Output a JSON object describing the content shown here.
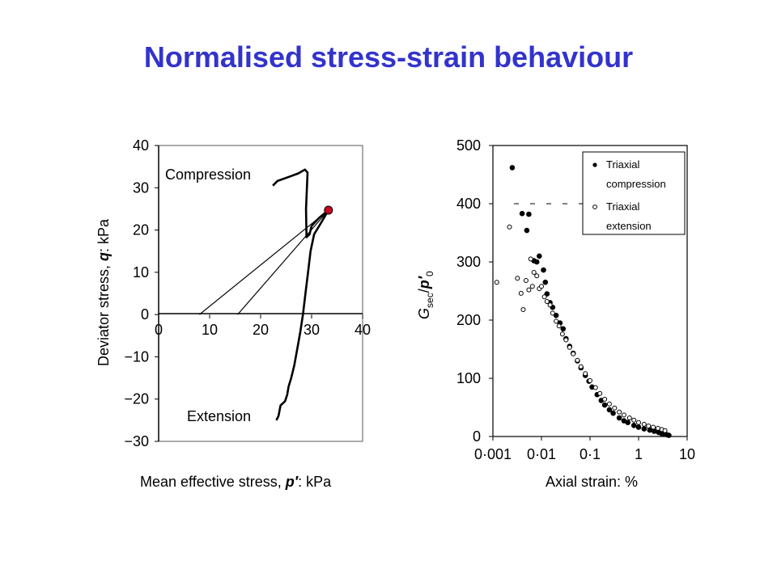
{
  "slide": {
    "title": "Normalised stress-strain behaviour"
  },
  "colors": {
    "title": "#3333cc",
    "stress_point": "#cc0022"
  },
  "chart_data": [
    {
      "type": "line",
      "xlabel_parts": [
        "Mean effective stress, ",
        "p′",
        ": kPa"
      ],
      "ylabel_parts": [
        "Deviator stress, ",
        "q",
        ": kPa"
      ],
      "xlim": [
        0,
        40
      ],
      "ylim": [
        -30,
        40
      ],
      "x_ticks": [
        "0",
        "10",
        "20",
        "30",
        "40"
      ],
      "y_ticks": [
        "40",
        "30",
        "20",
        "10",
        "0",
        "−10",
        "−20",
        "−30"
      ],
      "annotations": [
        "Compression",
        "Extension"
      ],
      "grid": false,
      "initial_state": {
        "x": 33.3,
        "y": 24.7
      },
      "series": [
        {
          "x": [
            22.4,
            23.3,
            25.6,
            27.4,
            28.7,
            29.2,
            28.9,
            29.0,
            29.6,
            30.0
          ],
          "y": [
            30.5,
            31.6,
            32.6,
            33.4,
            34.3,
            33.6,
            25.0,
            18.3,
            19.0,
            21.0
          ]
        },
        {
          "x": [
            30.0,
            31.5,
            33.3,
            32.0,
            30.5,
            29.8,
            29.3,
            28.8,
            28.3,
            27.8,
            27.2,
            26.6,
            26.0,
            25.5,
            25.2,
            24.8,
            23.9,
            23.5,
            23.1
          ],
          "y": [
            21.0,
            22.9,
            24.7,
            22.0,
            19.0,
            15.0,
            10.0,
            5.0,
            0.0,
            -4.0,
            -8.0,
            -12.0,
            -15.0,
            -17.0,
            -19.0,
            -20.5,
            -21.5,
            -24.0,
            -25.0
          ]
        },
        {
          "x": [
            33.3,
            8.0
          ],
          "y": [
            24.7,
            0.0
          ]
        },
        {
          "x": [
            33.3,
            15.5
          ],
          "y": [
            24.7,
            0.0
          ]
        }
      ]
    },
    {
      "type": "scatter",
      "xscale": "log",
      "xlim": [
        0.001,
        10
      ],
      "ylim": [
        0,
        500
      ],
      "x_ticks": [
        "0·001",
        "0·01",
        "0·1",
        "1",
        "10"
      ],
      "y_ticks": [
        "500",
        "400",
        "300",
        "200",
        "100",
        "0"
      ],
      "xlabel": "Axial strain: %",
      "ylabel_parts": [
        "G",
        "sec",
        "/",
        "p′",
        "0"
      ],
      "reference_line_y": 400,
      "legend_position": "top-right",
      "series": [
        {
          "name_lines": [
            "Triaxial",
            "compression"
          ],
          "marker": "filled-circle",
          "x": [
            0.0025,
            0.004,
            0.0055,
            0.005,
            0.007,
            0.008,
            0.009,
            0.011,
            0.012,
            0.013,
            0.015,
            0.017,
            0.02,
            0.024,
            0.028,
            0.032,
            0.038,
            0.045,
            0.055,
            0.065,
            0.08,
            0.095,
            0.11,
            0.14,
            0.17,
            0.2,
            0.25,
            0.3,
            0.4,
            0.5,
            0.6,
            0.8,
            1.0,
            1.3,
            1.7,
            2.1,
            2.6,
            3.0,
            3.4,
            3.8,
            4.2
          ],
          "y": [
            462,
            383,
            382,
            354,
            302,
            300,
            310,
            286,
            265,
            245,
            230,
            222,
            208,
            195,
            185,
            168,
            155,
            143,
            130,
            118,
            105,
            95,
            85,
            72,
            62,
            54,
            46,
            40,
            32,
            27,
            24,
            19,
            16,
            13,
            11,
            9,
            7,
            5,
            4,
            3,
            2
          ]
        },
        {
          "name_lines": [
            "Triaxial",
            "extension"
          ],
          "marker": "open-circle",
          "x": [
            0.0012,
            0.0022,
            0.0032,
            0.0038,
            0.0042,
            0.0048,
            0.0055,
            0.006,
            0.0065,
            0.007,
            0.008,
            0.009,
            0.01,
            0.0115,
            0.013,
            0.015,
            0.017,
            0.02,
            0.023,
            0.027,
            0.032,
            0.038,
            0.045,
            0.055,
            0.065,
            0.08,
            0.1,
            0.13,
            0.16,
            0.2,
            0.25,
            0.32,
            0.4,
            0.5,
            0.65,
            0.8,
            1.0,
            1.3,
            1.6,
            2.0,
            2.5,
            3.0,
            3.5
          ],
          "y": [
            265,
            360,
            272,
            246,
            218,
            268,
            252,
            305,
            258,
            282,
            276,
            254,
            258,
            240,
            232,
            226,
            212,
            198,
            190,
            176,
            166,
            153,
            142,
            131,
            120,
            108,
            96,
            84,
            74,
            64,
            56,
            49,
            42,
            37,
            32,
            28,
            24,
            21,
            18,
            16,
            14,
            12,
            10
          ]
        }
      ]
    }
  ]
}
